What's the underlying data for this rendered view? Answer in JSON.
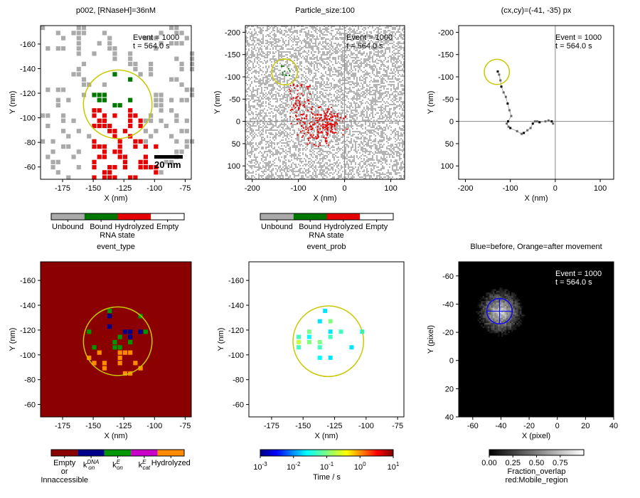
{
  "panels": [
    {
      "id": "rna_map",
      "title": "p002, [RNaseH]=36nM",
      "xlabel": "X (nm)",
      "ylabel": "Y (nm)",
      "xticks": [
        "-175",
        "-150",
        "-125",
        "-100",
        "-75"
      ],
      "yticks": [
        "-160",
        "-140",
        "-120",
        "-100",
        "-80",
        "-60"
      ],
      "annotation": [
        "Event = 1000",
        "t = 564.0 s"
      ],
      "scalebar_label": "20 nm"
    },
    {
      "id": "particle_map",
      "title": "Particle_size:100",
      "xlabel": "X (nm)",
      "ylabel": "Y (nm)",
      "xticks": [
        "-200",
        "-100",
        "0",
        "100"
      ],
      "yticks": [
        "-200",
        "-150",
        "-100",
        "-50",
        "0",
        "50",
        "100"
      ],
      "annotation": [
        "Event = 1000",
        "t = 564.0 s"
      ]
    },
    {
      "id": "trajectory",
      "title": "(cx,cy)=(-41, -35) px",
      "xlabel": "X (nm)",
      "ylabel": "Y (nm)",
      "xticks": [
        "-200",
        "-100",
        "0",
        "100"
      ],
      "yticks": [
        "-200",
        "-150",
        "-100",
        "-50",
        "0",
        "50",
        "100"
      ],
      "annotation": [
        "Event = 1000",
        "t = 564.0 s"
      ]
    },
    {
      "id": "event_type",
      "title": "event_type",
      "xlabel": "X (nm)",
      "ylabel": "Y (nm)",
      "xticks": [
        "-175",
        "-150",
        "-125",
        "-100",
        "-75"
      ],
      "yticks": [
        "-160",
        "-140",
        "-120",
        "-100",
        "-80",
        "-60"
      ]
    },
    {
      "id": "event_prob",
      "title": "event_prob",
      "xlabel": "X (nm)",
      "ylabel": "Y (nm)",
      "xticks": [
        "-175",
        "-150",
        "-125",
        "-100",
        "-75"
      ],
      "yticks": [
        "-160",
        "-140",
        "-120",
        "-100",
        "-80",
        "-60"
      ]
    },
    {
      "id": "overlap",
      "title": "Blue=before, Orange=after movement",
      "xlabel": "X (pixel)",
      "ylabel": "Y (pixel)",
      "xticks": [
        "-60",
        "-40",
        "-20",
        "0",
        "20",
        "40"
      ],
      "yticks": [
        "-60",
        "-40",
        "-20",
        "0",
        "20",
        "40"
      ],
      "annotation": [
        "Event = 1000",
        "t = 564.0 s"
      ]
    }
  ],
  "colorbars": {
    "rna_state": {
      "label": "RNA state",
      "ticks": [
        "Unbound",
        "Bound",
        "Hydrolyzed",
        "Empty"
      ],
      "colors": [
        "#aaaaaa",
        "#007800",
        "#e60000",
        "#ffffff"
      ]
    },
    "event_type": {
      "ticks": [
        "Empty\nor\nInnaccessible",
        "k_on^DNA",
        "k_on^E",
        "k_cat^E",
        "Hydrolyzed"
      ],
      "colors": [
        "#8b0000",
        "#00008b",
        "#009600",
        "#c800c8",
        "#ff8c00"
      ]
    },
    "event_prob": {
      "label": "Time / s",
      "ticks": [
        "10^-3",
        "10^-2",
        "10^-1",
        "10^0",
        "10^1"
      ],
      "colormap": "jet"
    },
    "overlap": {
      "label_lines": [
        "Fraction_overlap",
        "red:Mobile_region"
      ],
      "ticks": [
        "0.00",
        "0.25",
        "0.50",
        "0.75"
      ],
      "colormap": "gray"
    }
  },
  "chart_data": [
    {
      "type": "heatmap",
      "panel": "rna_map",
      "xlim": [
        -193,
        -70
      ],
      "ylim": [
        -175,
        -50
      ],
      "circle": {
        "cx": -130,
        "cy": -111,
        "r": 28,
        "color": "#c8c800"
      },
      "states": [
        "Unbound",
        "Bound",
        "Hydrolyzed",
        "Empty"
      ]
    },
    {
      "type": "heatmap",
      "panel": "particle_map",
      "xlim": [
        -215,
        130
      ],
      "ylim": [
        -215,
        130
      ],
      "crosshair": [
        0,
        0
      ],
      "circle": {
        "cx": -130,
        "cy": -111,
        "r": 28,
        "color": "#c8c800"
      }
    },
    {
      "type": "scatter",
      "panel": "trajectory",
      "xlim": [
        -215,
        130
      ],
      "ylim": [
        -215,
        130
      ],
      "crosshair": [
        0,
        0
      ],
      "circle": {
        "cx": -130,
        "cy": -111,
        "r": 28,
        "color": "#c8c800"
      },
      "points": [
        [
          -128,
          -112
        ],
        [
          -125,
          -105
        ],
        [
          -122,
          -92
        ],
        [
          -120,
          -78
        ],
        [
          -115,
          -65
        ],
        [
          -110,
          -55
        ],
        [
          -106,
          -40
        ],
        [
          -102,
          -25
        ],
        [
          -98,
          -12
        ],
        [
          -105,
          0
        ],
        [
          -108,
          5
        ],
        [
          -104,
          12
        ],
        [
          -100,
          15
        ],
        [
          -85,
          22
        ],
        [
          -75,
          28
        ],
        [
          -70,
          26
        ],
        [
          -62,
          20
        ],
        [
          -55,
          15
        ],
        [
          -50,
          5
        ],
        [
          -45,
          0
        ],
        [
          -40,
          0
        ],
        [
          -35,
          2
        ],
        [
          -22,
          0
        ],
        [
          -15,
          -2
        ],
        [
          -8,
          0
        ],
        [
          -5,
          5
        ]
      ]
    },
    {
      "type": "heatmap",
      "panel": "event_type",
      "xlim": [
        -193,
        -70
      ],
      "ylim": [
        -175,
        -50
      ],
      "circle": {
        "cx": -130,
        "cy": -111,
        "r": 28,
        "color": "#c8c800"
      },
      "categories": [
        "Empty or Innaccessible",
        "k_on^DNA",
        "k_on^E",
        "k_cat^E",
        "Hydrolyzed"
      ]
    },
    {
      "type": "heatmap",
      "panel": "event_prob",
      "xlim": [
        -193,
        -70
      ],
      "ylim": [
        -175,
        -50
      ],
      "circle": {
        "cx": -130,
        "cy": -111,
        "r": 28,
        "color": "#c8c800"
      },
      "color_scale": "log",
      "crange": [
        0.001,
        10
      ]
    },
    {
      "type": "heatmap",
      "panel": "overlap",
      "xlim": [
        -70,
        40
      ],
      "ylim": [
        -70,
        40
      ],
      "center": [
        -41,
        -35
      ],
      "circle_radius": 9,
      "crange": [
        0,
        1
      ]
    }
  ]
}
